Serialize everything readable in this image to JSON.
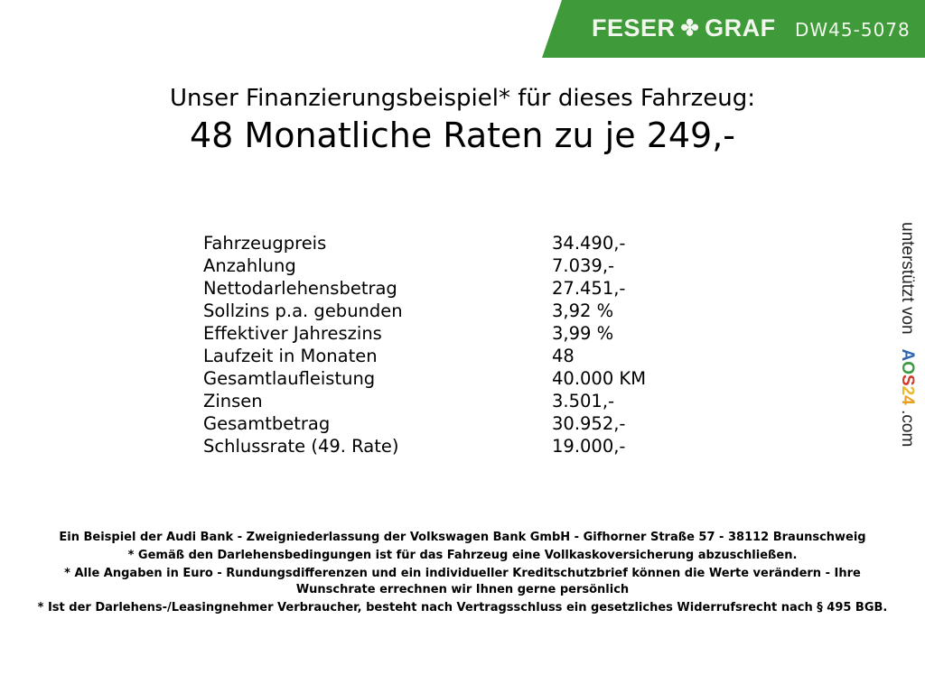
{
  "header": {
    "brand_left": "FESER",
    "brand_right": "GRAF",
    "vehicle_code": "DW45-5078",
    "brand_color": "#3f9a3a",
    "icon": "clover-icon"
  },
  "title": {
    "line1": "Unser Finanzierungsbeispiel* für dieses Fahrzeug:",
    "line2": "48 Monatliche Raten zu je 249,-"
  },
  "rows": [
    {
      "label": "Fahrzeugpreis",
      "value": "34.490,-"
    },
    {
      "label": "Anzahlung",
      "value": "7.039,-"
    },
    {
      "label": "Nettodarlehensbetrag",
      "value": "27.451,-"
    },
    {
      "label": "Sollzins p.a. gebunden",
      "value": "3,92 %"
    },
    {
      "label": "Effektiver Jahreszins",
      "value": "3,99 %"
    },
    {
      "label": "Laufzeit in Monaten",
      "value": "48"
    },
    {
      "label": "Gesamtlaufleistung",
      "value": "40.000 KM"
    },
    {
      "label": "Zinsen",
      "value": "3.501,-"
    },
    {
      "label": "Gesamtbetrag",
      "value": "30.952,-"
    },
    {
      "label": "Schlussrate (49. Rate)",
      "value": "19.000,-"
    }
  ],
  "side": {
    "text": "unterstützt von",
    "logo": "AOS24",
    "suffix": ".com"
  },
  "footer": [
    "Ein Beispiel der Audi Bank - Zweigniederlassung der Volkswagen Bank GmbH - Gifhorner Straße 57 - 38112 Braunschweig",
    "* Gemäß den Darlehensbedingungen ist für das Fahrzeug eine Vollkaskoversicherung abzuschließen.",
    "* Alle Angaben in Euro - Rundungsdifferenzen und ein individueller Kreditschutzbrief können die Werte verändern - Ihre Wunschrate errechnen wir Ihnen gerne persönlich",
    "* Ist der Darlehens-/Leasingnehmer Verbraucher, besteht nach Vertragsschluss ein gesetzliches Widerrufsrecht nach § 495 BGB."
  ]
}
